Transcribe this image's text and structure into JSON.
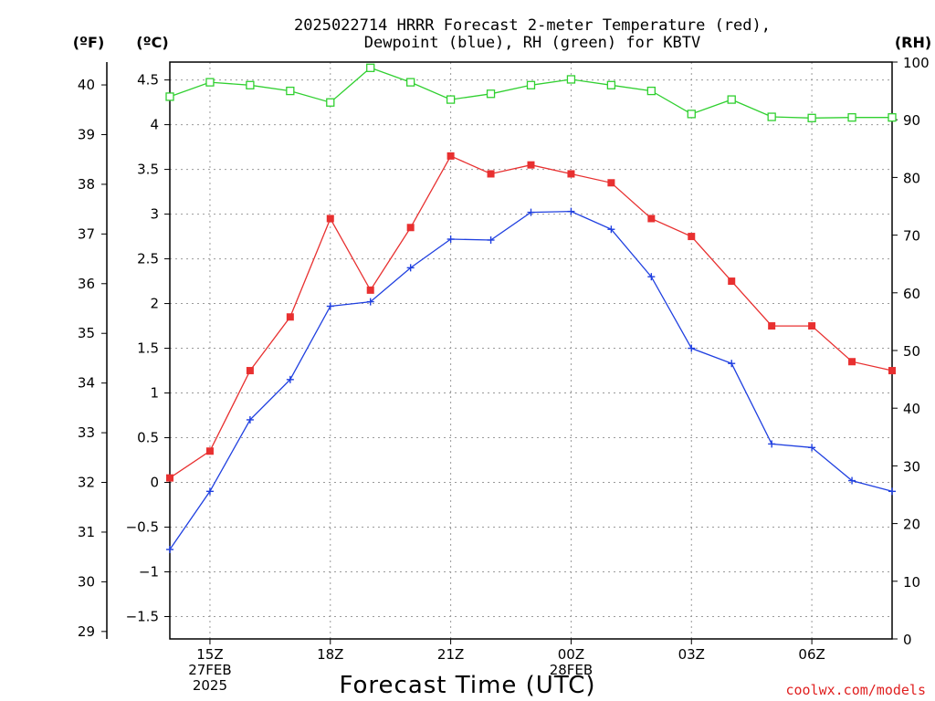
{
  "chart_data": {
    "type": "line",
    "title_lines": [
      "2025022714 HRRR Forecast 2-meter Temperature (red),",
      "Dewpoint (blue), RH (green) for KBTV"
    ],
    "unit_labels": {
      "f": "(ºF)",
      "c": "(ºC)",
      "rh": "(RH)"
    },
    "xlabel": "Forecast Time (UTC)",
    "credit": "coolwx.com/models",
    "x_hours": [
      14,
      15,
      16,
      17,
      18,
      19,
      20,
      21,
      22,
      23,
      24,
      25,
      26,
      27,
      28,
      29,
      30,
      31,
      32
    ],
    "xlim": [
      14,
      32
    ],
    "x_ticks": [
      {
        "hour": 15,
        "lines": [
          "15Z",
          "27FEB",
          "2025"
        ]
      },
      {
        "hour": 18,
        "lines": [
          "18Z"
        ]
      },
      {
        "hour": 21,
        "lines": [
          "21Z"
        ]
      },
      {
        "hour": 24,
        "lines": [
          "00Z",
          "28FEB"
        ]
      },
      {
        "hour": 27,
        "lines": [
          "03Z"
        ]
      },
      {
        "hour": 30,
        "lines": [
          "06Z"
        ]
      }
    ],
    "y_celsius": {
      "lim": [
        -1.75,
        4.7
      ],
      "ticks": [
        -1.5,
        -1,
        -0.5,
        0,
        0.5,
        1,
        1.5,
        2,
        2.5,
        3,
        3.5,
        4,
        4.5
      ],
      "tick_labels": [
        "−1.5",
        "−1",
        "−0.5",
        "0",
        "0.5",
        "1",
        "1.5",
        "2",
        "2.5",
        "3",
        "3.5",
        "4",
        "4.5"
      ]
    },
    "y_fahrenheit": {
      "ticks": [
        29,
        30,
        31,
        32,
        33,
        34,
        35,
        36,
        37,
        38,
        39,
        40
      ],
      "tick_labels": [
        "29",
        "30",
        "31",
        "32",
        "33",
        "34",
        "35",
        "36",
        "37",
        "38",
        "39",
        "40"
      ]
    },
    "y_rh": {
      "lim": [
        0,
        100
      ],
      "ticks": [
        0,
        10,
        20,
        30,
        40,
        50,
        60,
        70,
        80,
        90,
        100
      ],
      "tick_labels": [
        "0",
        "10",
        "20",
        "30",
        "40",
        "50",
        "60",
        "70",
        "80",
        "90",
        "100"
      ]
    },
    "grid": true,
    "series": [
      {
        "name": "Temperature (red)",
        "axis": "celsius",
        "color": "#e83030",
        "marker": "filled-square",
        "values": [
          0.05,
          0.35,
          1.25,
          1.85,
          2.95,
          2.15,
          2.85,
          3.65,
          3.45,
          3.55,
          3.45,
          3.35,
          2.95,
          2.75,
          2.25,
          1.75,
          1.75,
          1.35,
          1.25
        ]
      },
      {
        "name": "Dewpoint (blue)",
        "axis": "celsius",
        "color": "#2040e0",
        "marker": "plus",
        "values": [
          -0.75,
          -0.1,
          0.7,
          1.15,
          1.97,
          2.02,
          2.4,
          2.72,
          2.71,
          3.02,
          3.03,
          2.83,
          2.3,
          1.5,
          1.33,
          0.43,
          0.39,
          0.02,
          -0.1
        ]
      },
      {
        "name": "RH (green)",
        "axis": "rh",
        "color": "#30d030",
        "marker": "open-square",
        "values": [
          94,
          96.5,
          96,
          95,
          93,
          99,
          96.5,
          93.5,
          94.5,
          96,
          97,
          96,
          95,
          91,
          93.5,
          90.5,
          90.3,
          90.4,
          90.4
        ]
      }
    ]
  }
}
